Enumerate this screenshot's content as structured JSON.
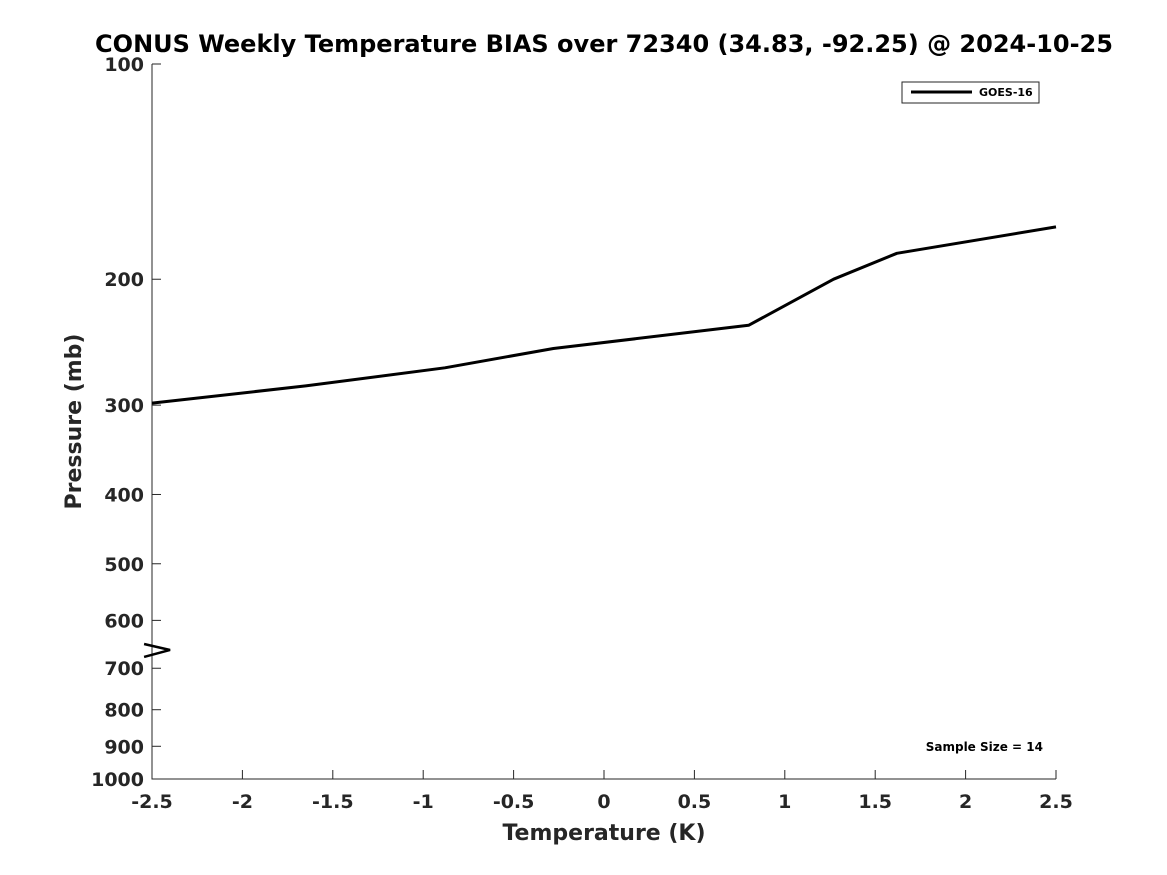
{
  "chart_data": {
    "type": "line",
    "title": "CONUS Weekly Temperature BIAS over 72340 (34.83, -92.25) @ 2024-10-25",
    "xlabel": "Temperature (K)",
    "ylabel": "Pressure (mb)",
    "xlim": [
      -2.5,
      2.5
    ],
    "ylim": [
      1000,
      100
    ],
    "yscale": "log",
    "y_reversed": true,
    "xticks": [
      -2.5,
      -2,
      -1.5,
      -1,
      -0.5,
      0,
      0.5,
      1,
      1.5,
      2,
      2.5
    ],
    "xtick_labels": [
      "-2.5",
      "-2",
      "-1.5",
      "-1",
      "-0.5",
      "0",
      "0.5",
      "1",
      "1.5",
      "2",
      "2.5"
    ],
    "yticks": [
      100,
      200,
      300,
      400,
      500,
      600,
      700,
      800,
      900,
      1000
    ],
    "ytick_labels": [
      "100",
      "200",
      "300",
      "400",
      "500",
      "600",
      "700",
      "800",
      "900",
      "1000"
    ],
    "grid": false,
    "legend_position": "top-right",
    "series": [
      {
        "name": "GOES-16",
        "color": "#000000",
        "points": [
          {
            "x": -2.5,
            "y": 298
          },
          {
            "x": -1.65,
            "y": 282
          },
          {
            "x": -0.88,
            "y": 266
          },
          {
            "x": -0.28,
            "y": 250
          },
          {
            "x": 0.8,
            "y": 232
          },
          {
            "x": 1.27,
            "y": 200
          },
          {
            "x": 1.62,
            "y": 184
          },
          {
            "x": 2.5,
            "y": 169
          }
        ]
      }
    ],
    "annotations": [
      {
        "text": "Sample Size = 14",
        "position": "bottom-right"
      }
    ],
    "marker": {
      "x": -2.4,
      "y": 660,
      "symbol": ">"
    }
  }
}
